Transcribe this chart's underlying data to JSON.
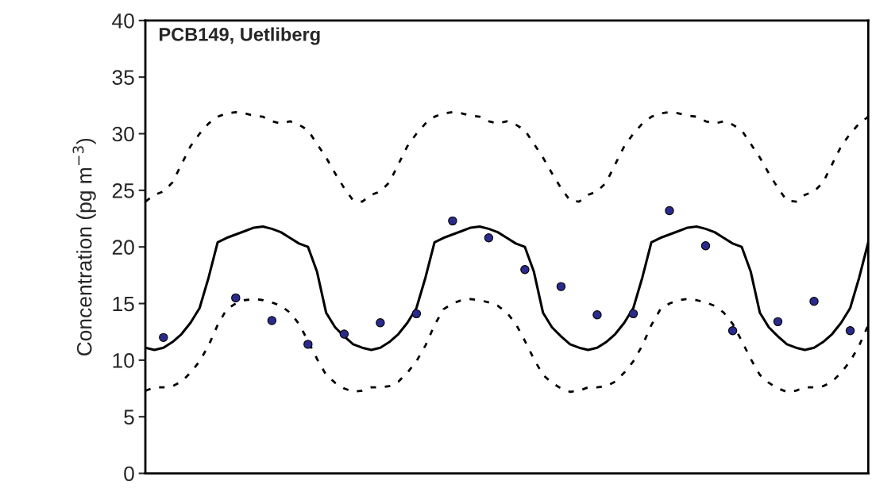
{
  "chart_data": {
    "type": "line",
    "title": "PCB149, Uetliberg",
    "ylabel": "Concentration (pg m$^{−3}$)",
    "categories": [
      null,
      null,
      null,
      null,
      null,
      null,
      null,
      null,
      null,
      null,
      null,
      null,
      null,
      null,
      null,
      null,
      null,
      null,
      null,
      null,
      null,
      null,
      null,
      null,
      null,
      null,
      null,
      null,
      null,
      null,
      null,
      null,
      null,
      null,
      null,
      null,
      null,
      null,
      null,
      null,
      null,
      null,
      null,
      null,
      null,
      null,
      null,
      null,
      null,
      null,
      null,
      null,
      null,
      null,
      null,
      null,
      null,
      null,
      null,
      null,
      null,
      null,
      null,
      null,
      null,
      null,
      null,
      null,
      null,
      null,
      null,
      null,
      null,
      null,
      null,
      null,
      null,
      null,
      null,
      null,
      null
    ],
    "ylim": [
      0,
      40
    ],
    "yticks": [
      0,
      5,
      10,
      15,
      20,
      25,
      30,
      35,
      40
    ],
    "tick_labels": "y",
    "series": [
      {
        "type": "line",
        "color": "#000000",
        "line_style": "solid",
        "values": [
          11.1,
          10.9,
          11.1,
          11.6,
          12.3,
          13.3,
          14.6,
          17.3,
          20.4,
          20.8,
          21.1,
          21.4,
          21.7,
          21.8,
          21.6,
          21.3,
          20.8,
          20.3,
          20.0,
          17.8,
          14.2,
          12.9,
          12.1,
          11.4,
          11.1,
          10.9,
          11.1,
          11.6,
          12.3,
          13.3,
          14.6,
          17.3,
          20.4,
          20.8,
          21.1,
          21.4,
          21.7,
          21.8,
          21.6,
          21.3,
          20.8,
          20.3,
          20.0,
          17.8,
          14.2,
          12.9,
          12.1,
          11.4,
          11.1,
          10.9,
          11.1,
          11.6,
          12.3,
          13.3,
          14.6,
          17.3,
          20.4,
          20.8,
          21.1,
          21.4,
          21.7,
          21.8,
          21.6,
          21.3,
          20.8,
          20.3,
          20.0,
          17.8,
          14.2,
          12.9,
          12.1,
          11.4,
          11.1,
          10.9,
          11.1,
          11.6,
          12.3,
          13.3,
          14.6,
          17.3,
          20.4
        ]
      },
      {
        "type": "line",
        "color": "#000000",
        "line_style": "dashed",
        "values": [
          24.0,
          24.6,
          24.9,
          25.7,
          27.3,
          28.9,
          30.0,
          30.9,
          31.5,
          31.8,
          31.9,
          31.8,
          31.6,
          31.5,
          31.1,
          30.9,
          31.1,
          30.8,
          30.3,
          29.1,
          27.9,
          26.5,
          25.2,
          24.1,
          24.0,
          24.6,
          24.9,
          25.7,
          27.3,
          28.9,
          30.0,
          30.9,
          31.5,
          31.8,
          31.9,
          31.8,
          31.6,
          31.5,
          31.1,
          30.9,
          31.1,
          30.8,
          30.3,
          29.1,
          27.9,
          26.5,
          25.2,
          24.1,
          24.0,
          24.6,
          24.9,
          25.7,
          27.3,
          28.9,
          30.0,
          30.9,
          31.5,
          31.8,
          31.9,
          31.8,
          31.6,
          31.5,
          31.1,
          30.9,
          31.1,
          30.8,
          30.3,
          29.1,
          27.9,
          26.5,
          25.2,
          24.1,
          24.0,
          24.6,
          24.9,
          25.7,
          27.3,
          28.9,
          30.0,
          30.9,
          31.5
        ]
      },
      {
        "type": "line",
        "color": "#000000",
        "line_style": "dashed",
        "values": [
          7.3,
          7.6,
          7.6,
          7.7,
          8.1,
          8.9,
          9.9,
          11.3,
          13.1,
          14.5,
          15.0,
          15.3,
          15.4,
          15.3,
          15.1,
          14.8,
          14.2,
          13.2,
          11.7,
          10.1,
          8.7,
          8.0,
          7.5,
          7.2,
          7.3,
          7.6,
          7.6,
          7.7,
          8.1,
          8.9,
          9.9,
          11.3,
          13.1,
          14.5,
          15.0,
          15.3,
          15.4,
          15.3,
          15.1,
          14.8,
          14.2,
          13.2,
          11.7,
          10.1,
          8.7,
          8.0,
          7.5,
          7.2,
          7.3,
          7.6,
          7.6,
          7.7,
          8.1,
          8.9,
          9.9,
          11.3,
          13.1,
          14.5,
          15.0,
          15.3,
          15.4,
          15.3,
          15.1,
          14.8,
          14.2,
          13.2,
          11.7,
          10.1,
          8.7,
          8.0,
          7.5,
          7.2,
          7.3,
          7.6,
          7.6,
          7.7,
          8.1,
          8.9,
          9.9,
          11.3,
          13.1
        ]
      },
      {
        "type": "scatter",
        "color": "#2a2a8c",
        "marker": "circle",
        "values": [
          null,
          null,
          12.0,
          null,
          null,
          null,
          null,
          null,
          null,
          null,
          15.5,
          null,
          null,
          null,
          13.5,
          null,
          null,
          null,
          11.4,
          null,
          null,
          null,
          12.3,
          null,
          null,
          null,
          13.3,
          null,
          null,
          null,
          14.1,
          null,
          null,
          null,
          22.3,
          null,
          null,
          null,
          20.8,
          null,
          null,
          null,
          18.0,
          null,
          null,
          null,
          16.5,
          null,
          null,
          null,
          14.0,
          null,
          null,
          null,
          14.1,
          null,
          null,
          null,
          23.2,
          null,
          null,
          null,
          20.1,
          null,
          null,
          12.6,
          null,
          null,
          null,
          null,
          13.4,
          null,
          null,
          null,
          15.2,
          null,
          null,
          null,
          12.6,
          null,
          null
        ]
      }
    ]
  }
}
